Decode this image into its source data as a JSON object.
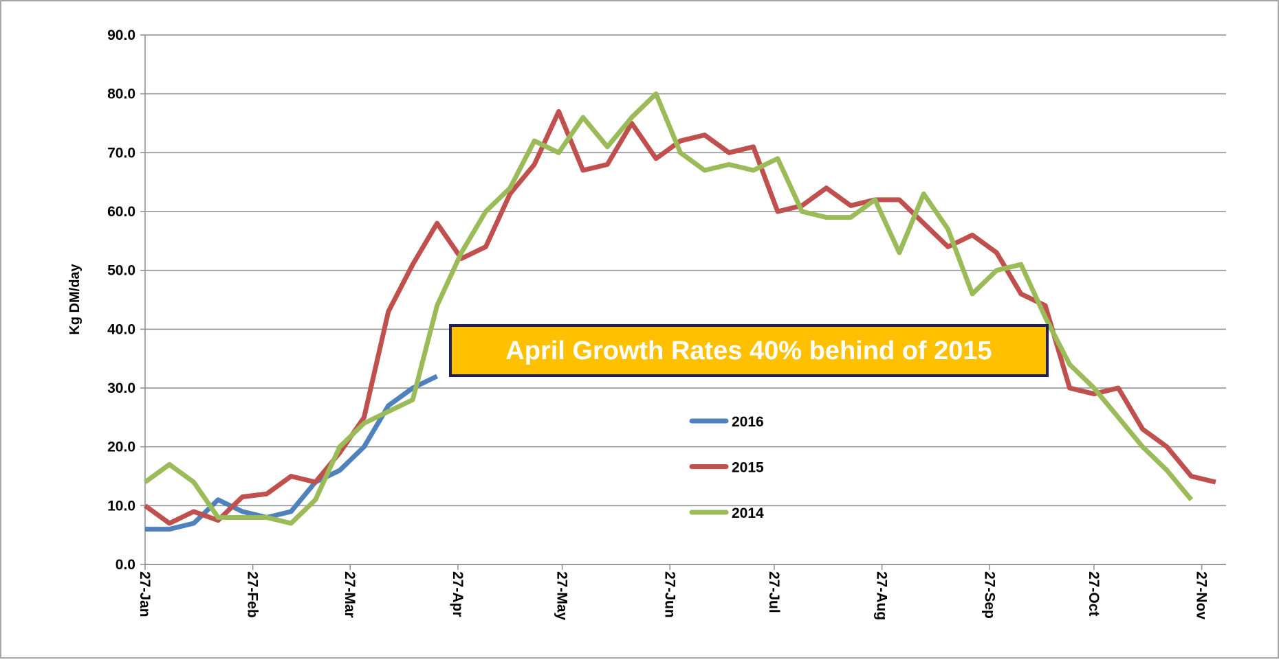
{
  "chart_data": {
    "type": "line",
    "ylabel": "Kg DM/day",
    "annotation": "April Growth Rates 40% behind of 2015",
    "x": [
      0,
      7,
      14,
      21,
      28,
      35,
      42,
      49,
      56,
      63,
      70,
      77,
      84,
      91,
      98,
      105,
      112,
      119,
      126,
      133,
      140,
      147,
      154,
      161,
      168,
      175,
      182,
      189,
      196,
      203,
      210,
      217,
      224,
      231,
      238,
      245,
      252,
      259,
      266,
      273,
      280,
      287,
      294,
      301,
      308
    ],
    "xlim": [
      0,
      311
    ],
    "xticks": [
      {
        "value": 0,
        "label": "27-Jan"
      },
      {
        "value": 31,
        "label": "27-Feb"
      },
      {
        "value": 59,
        "label": "27-Mar"
      },
      {
        "value": 90,
        "label": "27-Apr"
      },
      {
        "value": 120,
        "label": "27-May"
      },
      {
        "value": 151,
        "label": "27-Jun"
      },
      {
        "value": 181,
        "label": "27-Jul"
      },
      {
        "value": 212,
        "label": "27-Aug"
      },
      {
        "value": 243,
        "label": "27-Sep"
      },
      {
        "value": 273,
        "label": "27-Oct"
      },
      {
        "value": 304,
        "label": "27-Nov"
      }
    ],
    "ylim": [
      0,
      90
    ],
    "yticks": [
      {
        "value": 0,
        "label": "0.0"
      },
      {
        "value": 10,
        "label": "10.0"
      },
      {
        "value": 20,
        "label": "20.0"
      },
      {
        "value": 30,
        "label": "30.0"
      },
      {
        "value": 40,
        "label": "40.0"
      },
      {
        "value": 50,
        "label": "50.0"
      },
      {
        "value": 60,
        "label": "60.0"
      },
      {
        "value": 70,
        "label": "70.0"
      },
      {
        "value": 80,
        "label": "80.0"
      },
      {
        "value": 90,
        "label": "90.0"
      }
    ],
    "grid": true,
    "series": [
      {
        "name": "2016",
        "color": "#4F81BD",
        "values": [
          6,
          6,
          7,
          11,
          9,
          8,
          9,
          14,
          16,
          20,
          27,
          30,
          32,
          null,
          null,
          null,
          null,
          null,
          null,
          null,
          null,
          null,
          null,
          null,
          null,
          null,
          null,
          null,
          null,
          null,
          null,
          null,
          null,
          null,
          null,
          null,
          null,
          null,
          null,
          null,
          null,
          null,
          null,
          null,
          null
        ]
      },
      {
        "name": "2015",
        "color": "#C0504D",
        "values": [
          10,
          7,
          9,
          7.5,
          11.5,
          12,
          15,
          14,
          19,
          25,
          43,
          51,
          58,
          52,
          54,
          63,
          68,
          77,
          67,
          68,
          75,
          69,
          72,
          73,
          70,
          71,
          60,
          61,
          64,
          61,
          62,
          62,
          58,
          54,
          56,
          53,
          46,
          44,
          30,
          29,
          30,
          23,
          20,
          15,
          14
        ]
      },
      {
        "name": "2014",
        "color": "#9BBB59",
        "values": [
          14,
          17,
          14,
          8,
          8,
          8,
          7,
          11,
          20,
          24,
          26,
          28,
          44,
          53,
          60,
          64,
          72,
          70,
          76,
          71,
          76,
          80,
          70,
          67,
          68,
          67,
          69,
          60,
          59,
          59,
          62,
          53,
          63,
          57,
          46,
          50,
          51,
          42,
          34,
          30,
          25,
          20,
          16,
          11,
          null
        ]
      }
    ]
  }
}
